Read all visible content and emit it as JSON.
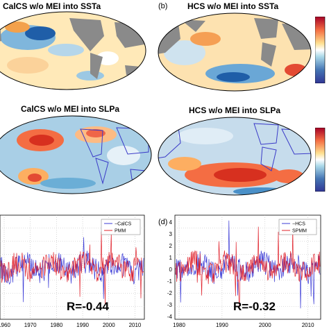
{
  "panels": {
    "a_sst": {
      "title": "CalCS w/o MEI into SSTa"
    },
    "b_sst": {
      "title": "HCS w/o MEI into SSTa",
      "label": "(b)"
    },
    "a_slp": {
      "title": "CalCS w/o MEI into SLPa"
    },
    "b_slp": {
      "title": "HCS w/o MEI into SLPa"
    },
    "c_ts": {
      "legend": [
        "−CalCS",
        "PMM"
      ],
      "correlation": "R=-0.44",
      "xticks": [
        "1960",
        "1970",
        "1980",
        "1990",
        "2000",
        "2010"
      ]
    },
    "d_ts": {
      "label": "(d)",
      "legend": [
        "−HCS",
        "SPMM"
      ],
      "correlation": "R=-0.32",
      "xticks": [
        "1980",
        "1990",
        "2000",
        "2010"
      ],
      "yticks": [
        "4",
        "3",
        "2",
        "1",
        "0",
        "-1",
        "-2",
        "-3",
        "-4"
      ]
    }
  },
  "colors": {
    "land": "#8a8a8a",
    "warm": "#d7301f",
    "cool": "#2c7bb6",
    "series_blue": "#3b3bd6",
    "series_red": "#e0202a"
  }
}
